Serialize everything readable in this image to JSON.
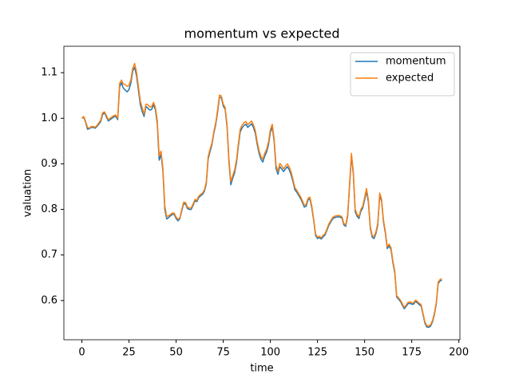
{
  "chart_data": {
    "type": "line",
    "title": "momentum vs expected",
    "x_label": "time",
    "y_label": "valuation",
    "x": [
      0,
      1,
      2,
      3,
      4,
      5,
      6,
      7,
      8,
      9,
      10,
      11,
      12,
      13,
      14,
      15,
      16,
      17,
      18,
      19,
      20,
      21,
      22,
      23,
      24,
      25,
      26,
      27,
      28,
      29,
      30,
      31,
      32,
      33,
      34,
      35,
      36,
      37,
      38,
      39,
      40,
      41,
      42,
      43,
      44,
      45,
      46,
      47,
      48,
      49,
      50,
      51,
      52,
      53,
      54,
      55,
      56,
      57,
      58,
      59,
      60,
      61,
      62,
      63,
      64,
      65,
      66,
      67,
      68,
      69,
      70,
      71,
      72,
      73,
      74,
      75,
      76,
      77,
      78,
      79,
      80,
      81,
      82,
      83,
      84,
      85,
      86,
      87,
      88,
      89,
      90,
      91,
      92,
      93,
      94,
      95,
      96,
      97,
      98,
      99,
      100,
      101,
      102,
      103,
      104,
      105,
      106,
      107,
      108,
      109,
      110,
      111,
      112,
      113,
      114,
      115,
      116,
      117,
      118,
      119,
      120,
      121,
      122,
      123,
      124,
      125,
      126,
      127,
      128,
      129,
      130,
      131,
      132,
      133,
      134,
      135,
      136,
      137,
      138,
      139,
      140,
      141,
      142,
      143,
      144,
      145,
      146,
      147,
      148,
      149,
      150,
      151,
      152,
      153,
      154,
      155,
      156,
      157,
      158,
      159,
      160,
      161,
      162,
      163,
      164,
      165,
      166,
      167,
      168,
      169,
      170,
      171,
      172,
      173,
      174,
      175,
      176,
      177,
      178,
      179,
      180,
      181,
      182,
      183,
      184,
      185,
      186,
      187,
      188,
      189,
      190,
      191
    ],
    "series": [
      {
        "name": "momentum",
        "color": "#1f77b4",
        "values": [
          1.0,
          1.002,
          0.991,
          0.976,
          0.977,
          0.98,
          0.98,
          0.978,
          0.982,
          0.987,
          0.993,
          1.008,
          1.012,
          1.003,
          0.994,
          0.997,
          1.0,
          1.003,
          1.004,
          0.997,
          1.068,
          1.078,
          1.066,
          1.062,
          1.058,
          1.063,
          1.078,
          1.104,
          1.112,
          1.093,
          1.062,
          1.03,
          1.015,
          1.004,
          1.026,
          1.022,
          1.018,
          1.019,
          1.03,
          1.019,
          0.988,
          0.908,
          0.921,
          0.884,
          0.8,
          0.779,
          0.782,
          0.786,
          0.789,
          0.789,
          0.78,
          0.775,
          0.78,
          0.797,
          0.813,
          0.812,
          0.802,
          0.8,
          0.8,
          0.809,
          0.819,
          0.817,
          0.826,
          0.83,
          0.833,
          0.84,
          0.856,
          0.911,
          0.927,
          0.942,
          0.967,
          0.986,
          1.013,
          1.046,
          1.045,
          1.027,
          1.02,
          0.982,
          0.906,
          0.854,
          0.868,
          0.88,
          0.902,
          0.938,
          0.97,
          0.979,
          0.984,
          0.987,
          0.98,
          0.984,
          0.988,
          0.98,
          0.967,
          0.943,
          0.923,
          0.91,
          0.904,
          0.917,
          0.926,
          0.942,
          0.969,
          0.981,
          0.949,
          0.89,
          0.877,
          0.894,
          0.889,
          0.883,
          0.889,
          0.894,
          0.887,
          0.876,
          0.861,
          0.843,
          0.838,
          0.831,
          0.824,
          0.815,
          0.805,
          0.807,
          0.821,
          0.823,
          0.803,
          0.775,
          0.743,
          0.736,
          0.738,
          0.735,
          0.74,
          0.744,
          0.754,
          0.765,
          0.772,
          0.779,
          0.782,
          0.783,
          0.784,
          0.783,
          0.781,
          0.766,
          0.763,
          0.785,
          0.85,
          0.917,
          0.878,
          0.795,
          0.785,
          0.78,
          0.796,
          0.803,
          0.821,
          0.84,
          0.816,
          0.759,
          0.739,
          0.736,
          0.747,
          0.766,
          0.831,
          0.818,
          0.773,
          0.748,
          0.714,
          0.72,
          0.712,
          0.683,
          0.661,
          0.608,
          0.603,
          0.598,
          0.59,
          0.582,
          0.587,
          0.593,
          0.594,
          0.592,
          0.592,
          0.598,
          0.595,
          0.591,
          0.588,
          0.569,
          0.55,
          0.542,
          0.541,
          0.544,
          0.553,
          0.569,
          0.592,
          0.637,
          0.643,
          0.645
        ]
      },
      {
        "name": "expected",
        "color": "#ff7f0e",
        "values": [
          1.0,
          1.004,
          0.993,
          0.98,
          0.978,
          0.982,
          0.982,
          0.98,
          0.984,
          0.99,
          0.996,
          1.012,
          1.014,
          1.006,
          0.997,
          1.0,
          1.003,
          1.006,
          1.007,
          1.0,
          1.076,
          1.084,
          1.075,
          1.074,
          1.07,
          1.072,
          1.085,
          1.11,
          1.12,
          1.101,
          1.07,
          1.038,
          1.023,
          1.009,
          1.031,
          1.03,
          1.025,
          1.025,
          1.035,
          1.024,
          0.995,
          0.918,
          0.928,
          0.89,
          0.808,
          0.784,
          0.786,
          0.789,
          0.792,
          0.792,
          0.783,
          0.778,
          0.782,
          0.8,
          0.816,
          0.815,
          0.805,
          0.803,
          0.803,
          0.812,
          0.822,
          0.82,
          0.829,
          0.833,
          0.836,
          0.843,
          0.86,
          0.916,
          0.932,
          0.946,
          0.971,
          0.99,
          1.018,
          1.051,
          1.049,
          1.031,
          1.024,
          0.987,
          0.912,
          0.861,
          0.874,
          0.886,
          0.908,
          0.944,
          0.976,
          0.985,
          0.99,
          0.993,
          0.986,
          0.99,
          0.994,
          0.986,
          0.973,
          0.949,
          0.929,
          0.916,
          0.91,
          0.923,
          0.932,
          0.948,
          0.975,
          0.987,
          0.955,
          0.897,
          0.883,
          0.901,
          0.896,
          0.889,
          0.895,
          0.9,
          0.893,
          0.882,
          0.866,
          0.848,
          0.842,
          0.835,
          0.828,
          0.819,
          0.809,
          0.811,
          0.825,
          0.827,
          0.807,
          0.778,
          0.746,
          0.739,
          0.741,
          0.738,
          0.743,
          0.747,
          0.757,
          0.768,
          0.775,
          0.782,
          0.785,
          0.786,
          0.787,
          0.786,
          0.784,
          0.769,
          0.766,
          0.789,
          0.855,
          0.923,
          0.884,
          0.8,
          0.789,
          0.784,
          0.8,
          0.807,
          0.826,
          0.846,
          0.821,
          0.763,
          0.743,
          0.74,
          0.751,
          0.77,
          0.836,
          0.822,
          0.777,
          0.752,
          0.718,
          0.724,
          0.716,
          0.687,
          0.665,
          0.611,
          0.606,
          0.601,
          0.593,
          0.585,
          0.59,
          0.596,
          0.597,
          0.595,
          0.595,
          0.601,
          0.598,
          0.594,
          0.591,
          0.572,
          0.553,
          0.545,
          0.544,
          0.547,
          0.556,
          0.572,
          0.595,
          0.64,
          0.646,
          0.648
        ]
      }
    ],
    "xlim": [
      -9.55,
      200.55
    ],
    "xticks": [
      0,
      25,
      50,
      75,
      100,
      125,
      150,
      175,
      200
    ],
    "ylim": [
      0.514,
      1.158
    ],
    "yticks": [
      0.6,
      0.7,
      0.8,
      0.9,
      {
        "value": 1,
        "label": "1.0"
      },
      1.1
    ],
    "grid": false,
    "legend": "upper right"
  }
}
